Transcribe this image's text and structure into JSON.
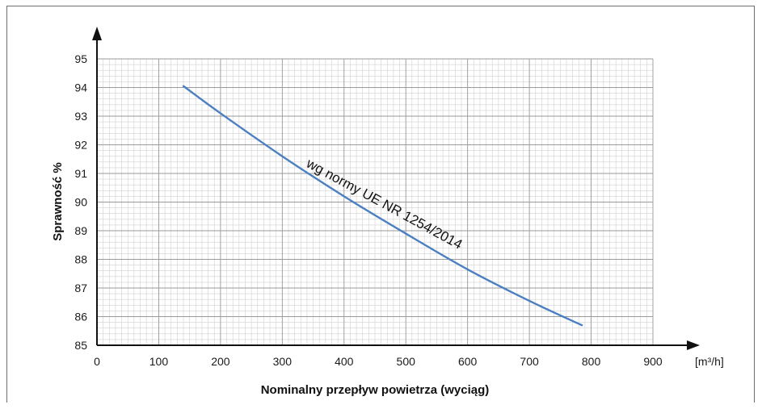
{
  "chart_data": {
    "type": "line",
    "title": "",
    "xlabel": "Nominalny przepływ powietrza (wyciąg)",
    "ylabel": "Sprawność %",
    "x_unit_label": "[m³/h]",
    "xlim": [
      0,
      900
    ],
    "ylim": [
      85,
      95
    ],
    "x_ticks": [
      "0",
      "100",
      "200",
      "300",
      "400",
      "500",
      "600",
      "700",
      "800",
      "900"
    ],
    "y_ticks": [
      "85",
      "86",
      "87",
      "88",
      "89",
      "90",
      "91",
      "92",
      "93",
      "94",
      "95"
    ],
    "grid": true,
    "legend": "none",
    "annotation": "wg normy UE NR 1254/2014",
    "series": [
      {
        "color": "#4a7fc1",
        "x": [
          140,
          200,
          300,
          400,
          500,
          600,
          700,
          785
        ],
        "y": [
          94.05,
          93.1,
          91.6,
          90.2,
          88.9,
          87.65,
          86.55,
          85.7
        ]
      }
    ]
  }
}
